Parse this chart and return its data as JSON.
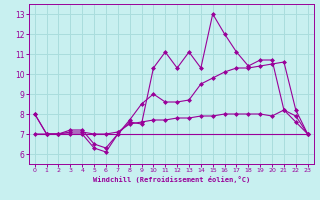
{
  "xlabel": "Windchill (Refroidissement éolien,°C)",
  "bg_color": "#c8f0f0",
  "line_color": "#990099",
  "grid_color": "#aadddd",
  "x_ticks": [
    0,
    1,
    2,
    3,
    4,
    5,
    6,
    7,
    8,
    9,
    10,
    11,
    12,
    13,
    14,
    15,
    16,
    17,
    18,
    19,
    20,
    21,
    22,
    23
  ],
  "y_ticks": [
    6,
    7,
    8,
    9,
    10,
    11,
    12,
    13
  ],
  "ylim": [
    5.5,
    13.5
  ],
  "xlim": [
    -0.5,
    23.5
  ],
  "series1": [
    8.0,
    7.0,
    7.0,
    7.0,
    7.0,
    6.3,
    6.1,
    7.0,
    7.6,
    7.5,
    10.3,
    11.1,
    10.3,
    11.1,
    10.3,
    13.0,
    12.0,
    11.1,
    10.4,
    10.7,
    10.7,
    8.2,
    7.9,
    7.0
  ],
  "series2": [
    8.0,
    7.0,
    7.0,
    7.2,
    7.2,
    6.5,
    6.3,
    7.0,
    7.7,
    8.5,
    9.0,
    8.6,
    8.6,
    8.7,
    9.5,
    9.8,
    10.1,
    10.3,
    10.3,
    10.4,
    10.5,
    10.6,
    8.2,
    7.0
  ],
  "series3": [
    7.0,
    7.0,
    7.0,
    7.0,
    7.0,
    7.0,
    7.0,
    7.0,
    7.0,
    7.0,
    7.0,
    7.0,
    7.0,
    7.0,
    7.0,
    7.0,
    7.0,
    7.0,
    7.0,
    7.0,
    7.0,
    7.0,
    7.0,
    7.0
  ],
  "series4": [
    7.0,
    7.0,
    7.0,
    7.1,
    7.1,
    7.0,
    7.0,
    7.1,
    7.5,
    7.6,
    7.7,
    7.7,
    7.8,
    7.8,
    7.9,
    7.9,
    8.0,
    8.0,
    8.0,
    8.0,
    7.9,
    8.2,
    7.6,
    7.0
  ]
}
